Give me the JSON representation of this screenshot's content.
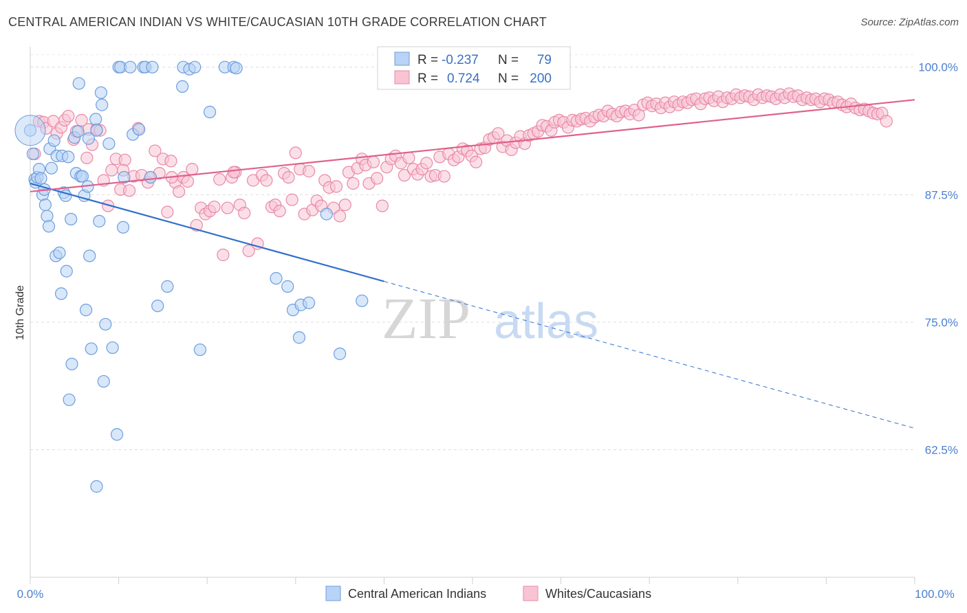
{
  "title": "CENTRAL AMERICAN INDIAN VS WHITE/CAUCASIAN 10TH GRADE CORRELATION CHART",
  "source": "Source: ZipAtlas.com",
  "watermark": {
    "part1": "ZIP",
    "part2": "atlas"
  },
  "colors": {
    "blue_fill": "#b8d3f5",
    "blue_stroke": "#6d9edc",
    "blue_line": "#2f6fcc",
    "pink_fill": "#f8c4d4",
    "pink_stroke": "#e888a8",
    "pink_line": "#e0608a",
    "tick_text": "#4a7fd0",
    "grid": "#dcdcdc"
  },
  "chart_data": {
    "type": "scatter",
    "ylabel": "10th Grade",
    "xlim": [
      0,
      100
    ],
    "ylim": [
      50,
      102
    ],
    "x_ticks": [
      "0.0%",
      "100.0%"
    ],
    "y_ticks": [
      {
        "value": 100.0,
        "label": "100.0%"
      },
      {
        "value": 87.5,
        "label": "87.5%"
      },
      {
        "value": 75.0,
        "label": "75.0%"
      },
      {
        "value": 62.5,
        "label": "62.5%"
      }
    ],
    "legend": [
      {
        "series": "Central American Indians",
        "r_label": "R =",
        "r": "-0.237",
        "n_label": "N =",
        "n": "79"
      },
      {
        "series": "Whites/Caucasians",
        "r_label": "R =",
        "r": "0.724",
        "n_label": "N =",
        "n": "200"
      }
    ],
    "series": [
      {
        "name": "Central American Indians",
        "trend": {
          "x0": 0,
          "y0": 88.6,
          "x1": 40,
          "y1": 79.0,
          "dash_x1": 100,
          "dash_y1": 64.6
        },
        "points": [
          [
            0,
            93.8
          ],
          [
            0.3,
            91.5
          ],
          [
            0.5,
            89.0
          ],
          [
            0.6,
            88.7
          ],
          [
            0.8,
            89.2
          ],
          [
            1.0,
            90.0
          ],
          [
            1.2,
            89.1
          ],
          [
            1.4,
            87.5
          ],
          [
            1.6,
            88.0
          ],
          [
            1.7,
            86.5
          ],
          [
            1.9,
            85.4
          ],
          [
            2.1,
            84.4
          ],
          [
            2.2,
            92.0
          ],
          [
            2.4,
            90.1
          ],
          [
            2.7,
            92.8
          ],
          [
            2.9,
            81.5
          ],
          [
            3.0,
            91.3
          ],
          [
            3.3,
            81.8
          ],
          [
            3.5,
            77.8
          ],
          [
            3.6,
            91.3
          ],
          [
            3.8,
            87.7
          ],
          [
            4.0,
            87.4
          ],
          [
            4.1,
            80.0
          ],
          [
            4.3,
            91.2
          ],
          [
            4.4,
            67.4
          ],
          [
            4.6,
            85.1
          ],
          [
            4.7,
            70.9
          ],
          [
            5.0,
            93.1
          ],
          [
            5.2,
            89.6
          ],
          [
            5.4,
            93.7
          ],
          [
            5.5,
            98.4
          ],
          [
            5.7,
            89.3
          ],
          [
            5.9,
            89.3
          ],
          [
            6.1,
            87.4
          ],
          [
            6.3,
            76.2
          ],
          [
            6.5,
            88.3
          ],
          [
            6.6,
            93.0
          ],
          [
            6.7,
            81.5
          ],
          [
            6.9,
            72.4
          ],
          [
            7.4,
            94.9
          ],
          [
            7.5,
            93.8
          ],
          [
            7.8,
            84.9
          ],
          [
            8.0,
            97.5
          ],
          [
            8.1,
            96.3
          ],
          [
            8.3,
            69.2
          ],
          [
            8.5,
            74.8
          ],
          [
            8.9,
            92.5
          ],
          [
            9.3,
            72.5
          ],
          [
            9.8,
            64.0
          ],
          [
            10.0,
            100.0
          ],
          [
            10.2,
            100.0
          ],
          [
            10.5,
            84.3
          ],
          [
            10.6,
            89.2
          ],
          [
            11.3,
            100.0
          ],
          [
            11.6,
            93.4
          ],
          [
            12.3,
            93.9
          ],
          [
            12.8,
            100.0
          ],
          [
            13.0,
            100.0
          ],
          [
            13.6,
            89.2
          ],
          [
            13.8,
            100.0
          ],
          [
            14.4,
            76.6
          ],
          [
            15.5,
            78.5
          ],
          [
            17.2,
            98.1
          ],
          [
            17.3,
            100.0
          ],
          [
            18.0,
            99.8
          ],
          [
            18.6,
            100.0
          ],
          [
            19.2,
            72.3
          ],
          [
            20.3,
            95.6
          ],
          [
            22.0,
            100.0
          ],
          [
            23.0,
            100.0
          ],
          [
            23.3,
            99.9
          ],
          [
            27.8,
            79.3
          ],
          [
            29.1,
            78.5
          ],
          [
            29.7,
            76.2
          ],
          [
            30.4,
            73.5
          ],
          [
            30.6,
            76.7
          ],
          [
            31.5,
            76.9
          ],
          [
            33.5,
            85.6
          ],
          [
            35.0,
            71.9
          ],
          [
            37.5,
            77.1
          ],
          [
            7.5,
            58.9
          ]
        ]
      },
      {
        "name": "Whites/Caucasians",
        "trend": {
          "x0": 0,
          "y0": 87.8,
          "x1": 100,
          "y1": 96.8
        },
        "points": [
          [
            0.5,
            91.5
          ],
          [
            1.0,
            94.7
          ],
          [
            1.5,
            94.6
          ],
          [
            1.8,
            94.0
          ],
          [
            2.6,
            94.7
          ],
          [
            3.0,
            93.5
          ],
          [
            3.5,
            94.1
          ],
          [
            3.9,
            94.8
          ],
          [
            4.3,
            95.2
          ],
          [
            4.9,
            92.9
          ],
          [
            5.2,
            93.7
          ],
          [
            5.8,
            94.8
          ],
          [
            6.4,
            91.1
          ],
          [
            6.6,
            93.9
          ],
          [
            7.0,
            92.4
          ],
          [
            7.5,
            93.9
          ],
          [
            7.9,
            93.8
          ],
          [
            8.3,
            88.9
          ],
          [
            8.8,
            86.4
          ],
          [
            9.2,
            89.9
          ],
          [
            9.7,
            91.0
          ],
          [
            10.2,
            88.0
          ],
          [
            10.7,
            90.9
          ],
          [
            11.2,
            87.9
          ],
          [
            11.7,
            89.3
          ],
          [
            12.2,
            94.0
          ],
          [
            12.6,
            89.4
          ],
          [
            13.3,
            88.7
          ],
          [
            13.6,
            89.2
          ],
          [
            14.1,
            91.8
          ],
          [
            14.6,
            89.6
          ],
          [
            15.0,
            91.0
          ],
          [
            15.5,
            85.8
          ],
          [
            15.9,
            90.8
          ],
          [
            16.4,
            88.7
          ],
          [
            16.8,
            87.8
          ],
          [
            17.3,
            89.2
          ],
          [
            17.8,
            88.8
          ],
          [
            18.3,
            90.0
          ],
          [
            18.8,
            84.5
          ],
          [
            19.3,
            86.2
          ],
          [
            19.8,
            85.6
          ],
          [
            20.3,
            85.9
          ],
          [
            20.8,
            86.3
          ],
          [
            21.4,
            89.0
          ],
          [
            21.8,
            81.6
          ],
          [
            22.3,
            86.2
          ],
          [
            22.8,
            89.2
          ],
          [
            23.2,
            89.7
          ],
          [
            23.7,
            86.5
          ],
          [
            24.2,
            85.7
          ],
          [
            24.7,
            82.0
          ],
          [
            25.2,
            88.9
          ],
          [
            25.7,
            82.7
          ],
          [
            26.2,
            89.4
          ],
          [
            26.7,
            88.9
          ],
          [
            27.3,
            86.3
          ],
          [
            27.7,
            86.5
          ],
          [
            28.2,
            85.9
          ],
          [
            28.7,
            89.6
          ],
          [
            29.2,
            89.2
          ],
          [
            29.6,
            87.0
          ],
          [
            30.0,
            91.6
          ],
          [
            30.5,
            90.0
          ],
          [
            31.0,
            85.6
          ],
          [
            31.5,
            89.8
          ],
          [
            31.9,
            86.0
          ],
          [
            32.4,
            86.9
          ],
          [
            32.9,
            86.4
          ],
          [
            33.3,
            88.9
          ],
          [
            33.8,
            88.2
          ],
          [
            34.3,
            86.2
          ],
          [
            34.6,
            88.3
          ],
          [
            35.0,
            85.4
          ],
          [
            35.6,
            86.5
          ],
          [
            36.0,
            89.7
          ],
          [
            36.5,
            88.6
          ],
          [
            37.0,
            90.1
          ],
          [
            37.5,
            91.0
          ],
          [
            37.9,
            90.4
          ],
          [
            38.3,
            88.6
          ],
          [
            38.8,
            90.7
          ],
          [
            39.2,
            89.1
          ],
          [
            39.8,
            86.4
          ],
          [
            40.3,
            90.2
          ],
          [
            40.8,
            91.0
          ],
          [
            41.3,
            91.3
          ],
          [
            41.9,
            90.6
          ],
          [
            42.3,
            89.4
          ],
          [
            42.8,
            91.1
          ],
          [
            43.3,
            90.0
          ],
          [
            43.8,
            89.5
          ],
          [
            44.3,
            90.0
          ],
          [
            44.8,
            90.6
          ],
          [
            45.3,
            89.3
          ],
          [
            45.8,
            89.4
          ],
          [
            46.3,
            91.2
          ],
          [
            46.8,
            89.3
          ],
          [
            47.3,
            91.5
          ],
          [
            47.9,
            90.9
          ],
          [
            48.4,
            91.2
          ],
          [
            48.9,
            92.0
          ],
          [
            49.4,
            91.8
          ],
          [
            49.9,
            91.3
          ],
          [
            50.4,
            90.7
          ],
          [
            50.9,
            92.0
          ],
          [
            51.4,
            92.1
          ],
          [
            51.9,
            92.9
          ],
          [
            52.4,
            93.1
          ],
          [
            52.9,
            93.5
          ],
          [
            53.4,
            92.2
          ],
          [
            53.9,
            92.8
          ],
          [
            54.4,
            91.9
          ],
          [
            54.9,
            92.6
          ],
          [
            55.4,
            93.2
          ],
          [
            55.9,
            92.5
          ],
          [
            56.4,
            93.3
          ],
          [
            56.9,
            93.5
          ],
          [
            57.4,
            93.7
          ],
          [
            57.9,
            94.3
          ],
          [
            58.4,
            94.2
          ],
          [
            58.9,
            93.8
          ],
          [
            59.3,
            94.6
          ],
          [
            59.8,
            94.8
          ],
          [
            60.3,
            94.6
          ],
          [
            60.8,
            94.1
          ],
          [
            61.3,
            94.8
          ],
          [
            61.8,
            94.7
          ],
          [
            62.3,
            94.9
          ],
          [
            62.8,
            95.0
          ],
          [
            63.3,
            94.7
          ],
          [
            63.8,
            95.1
          ],
          [
            64.3,
            95.3
          ],
          [
            64.8,
            95.2
          ],
          [
            65.3,
            95.7
          ],
          [
            65.8,
            95.4
          ],
          [
            66.3,
            95.2
          ],
          [
            66.8,
            95.6
          ],
          [
            67.3,
            95.7
          ],
          [
            67.8,
            95.4
          ],
          [
            68.3,
            95.8
          ],
          [
            68.8,
            95.3
          ],
          [
            69.3,
            96.3
          ],
          [
            69.8,
            96.5
          ],
          [
            70.3,
            96.2
          ],
          [
            70.8,
            96.4
          ],
          [
            71.3,
            96.0
          ],
          [
            71.8,
            96.5
          ],
          [
            72.3,
            96.1
          ],
          [
            72.8,
            96.6
          ],
          [
            73.3,
            96.3
          ],
          [
            73.8,
            96.6
          ],
          [
            74.3,
            96.5
          ],
          [
            74.8,
            96.8
          ],
          [
            75.3,
            96.9
          ],
          [
            75.8,
            96.4
          ],
          [
            76.3,
            96.9
          ],
          [
            76.8,
            97.0
          ],
          [
            77.3,
            96.7
          ],
          [
            77.8,
            97.1
          ],
          [
            78.3,
            96.6
          ],
          [
            78.8,
            97.0
          ],
          [
            79.3,
            96.9
          ],
          [
            79.8,
            97.3
          ],
          [
            80.3,
            97.0
          ],
          [
            80.8,
            97.2
          ],
          [
            81.3,
            97.1
          ],
          [
            81.8,
            96.8
          ],
          [
            82.3,
            97.3
          ],
          [
            82.8,
            97.0
          ],
          [
            83.3,
            97.2
          ],
          [
            83.8,
            97.1
          ],
          [
            84.3,
            96.9
          ],
          [
            84.8,
            97.3
          ],
          [
            85.3,
            97.0
          ],
          [
            85.8,
            97.4
          ],
          [
            86.3,
            97.1
          ],
          [
            86.8,
            97.2
          ],
          [
            87.3,
            96.8
          ],
          [
            87.8,
            97.0
          ],
          [
            88.3,
            96.8
          ],
          [
            88.8,
            96.9
          ],
          [
            89.3,
            96.6
          ],
          [
            89.8,
            96.9
          ],
          [
            90.3,
            96.8
          ],
          [
            90.8,
            96.5
          ],
          [
            91.3,
            96.6
          ],
          [
            91.8,
            96.3
          ],
          [
            92.3,
            96.1
          ],
          [
            92.8,
            96.4
          ],
          [
            93.3,
            96.0
          ],
          [
            93.8,
            95.8
          ],
          [
            94.3,
            95.9
          ],
          [
            94.8,
            95.7
          ],
          [
            95.3,
            95.5
          ],
          [
            95.8,
            95.4
          ],
          [
            96.3,
            95.5
          ],
          [
            96.8,
            94.7
          ],
          [
            23.0,
            89.7
          ],
          [
            16.0,
            89.2
          ],
          [
            10.5,
            89.9
          ]
        ]
      }
    ]
  },
  "bottom_legend": [
    {
      "label": "Central American Indians"
    },
    {
      "label": "Whites/Caucasians"
    }
  ]
}
